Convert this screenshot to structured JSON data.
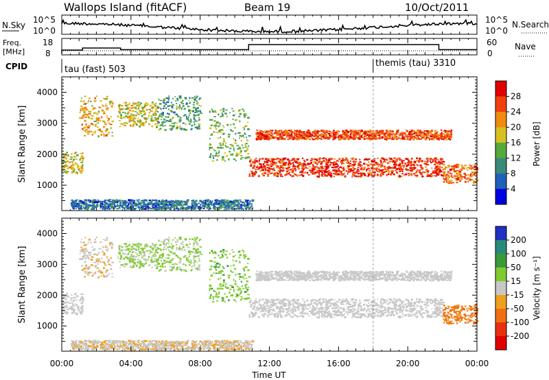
{
  "header": {
    "station": "Wallops Island (fitACF)",
    "beam": "Beam 19",
    "date": "10/Oct/2011"
  },
  "noise_panel": {
    "left_label": "N.Sky",
    "right_label": "N.Search",
    "left_ticks": [
      "10^5",
      "10^0"
    ],
    "right_ticks": [
      "10^5",
      "10^0"
    ]
  },
  "freq_panel": {
    "label_line1": "Freq.",
    "label_line2": "[MHz]",
    "right_label": "Nave",
    "left_ticks": [
      "18",
      "8"
    ],
    "right_ticks": [
      "60",
      "0"
    ]
  },
  "cpid_panel": {
    "label": "CPID",
    "programs": [
      "tau (fast) 503",
      "themis (tau) 3310"
    ]
  },
  "power_panel": {
    "ylabel": "Slant Range [km]",
    "yticks": [
      "4000",
      "3000",
      "2000",
      "1000"
    ],
    "colorbar_label": "Power [dB]",
    "colorbar_ticks": [
      "28",
      "24",
      "20",
      "16",
      "12",
      "8",
      "4"
    ],
    "colors": [
      "#0000e0",
      "#2060b8",
      "#3a8a7a",
      "#55aa3a",
      "#d8c020",
      "#f08a10",
      "#f04010",
      "#e00000"
    ]
  },
  "velocity_panel": {
    "ylabel": "Slant Range [km]",
    "yticks": [
      "4000",
      "3000",
      "2000",
      "1000"
    ],
    "colorbar_label": "Velocity [m s⁻¹]",
    "colorbar_ticks": [
      "200",
      "100",
      "50",
      "15",
      "-15",
      "-50",
      "-100",
      "-200"
    ],
    "colors": [
      "#2030c0",
      "#2a8a7a",
      "#3a9a3a",
      "#80cc30",
      "#c8c8c8",
      "#f0a020",
      "#f07010",
      "#e83010",
      "#e00000"
    ]
  },
  "xaxis": {
    "label": "Time UT",
    "ticks": [
      "00:00",
      "04:00",
      "08:00",
      "12:00",
      "16:00",
      "20:00",
      "00:00"
    ]
  },
  "chart_data": {
    "type": "heatmap",
    "title": "Wallops Island (fitACF)",
    "x_range": [
      "00:00",
      "24:00"
    ],
    "y_range": [
      180,
      4500
    ],
    "xlabel": "Time UT",
    "ylabel": "Slant Range [km]",
    "freq_steps": [
      {
        "t0": 0.0,
        "t1": 1.2,
        "mhz": 10.5
      },
      {
        "t0": 1.2,
        "t1": 3.4,
        "mhz": 12.0
      },
      {
        "t0": 3.4,
        "t1": 10.8,
        "mhz": 10.8
      },
      {
        "t0": 10.8,
        "t1": 21.8,
        "mhz": 14.5
      },
      {
        "t0": 21.8,
        "t1": 24.0,
        "mhz": 10.8
      }
    ],
    "cpid_change_hour": 18.0,
    "echo_bands": [
      {
        "t0": 0.0,
        "t1": 1.2,
        "r0": 1400,
        "r1": 2100,
        "power": 18,
        "velocity": 0
      },
      {
        "t0": 1.0,
        "t1": 2.9,
        "r0": 2600,
        "r1": 3900,
        "power": 20,
        "velocity": -10
      },
      {
        "t0": 3.2,
        "t1": 5.5,
        "r0": 2900,
        "r1": 3700,
        "power": 18,
        "velocity": 20
      },
      {
        "t0": 5.5,
        "t1": 8.0,
        "r0": 2800,
        "r1": 3900,
        "power": 12,
        "velocity": 20
      },
      {
        "t0": 8.5,
        "t1": 10.8,
        "r0": 1800,
        "r1": 3500,
        "power": 14,
        "velocity": 40
      },
      {
        "t0": 11.2,
        "t1": 22.5,
        "r0": 2500,
        "r1": 2800,
        "power": 26,
        "velocity": 0
      },
      {
        "t0": 10.8,
        "t1": 22.0,
        "r0": 1300,
        "r1": 1900,
        "power": 27,
        "velocity": 0
      },
      {
        "t0": 22.0,
        "t1": 24.0,
        "r0": 1100,
        "r1": 1700,
        "power": 24,
        "velocity": -60
      },
      {
        "t0": 0.5,
        "t1": 11.0,
        "r0": 250,
        "r1": 550,
        "power": 8,
        "velocity": -10
      }
    ]
  }
}
